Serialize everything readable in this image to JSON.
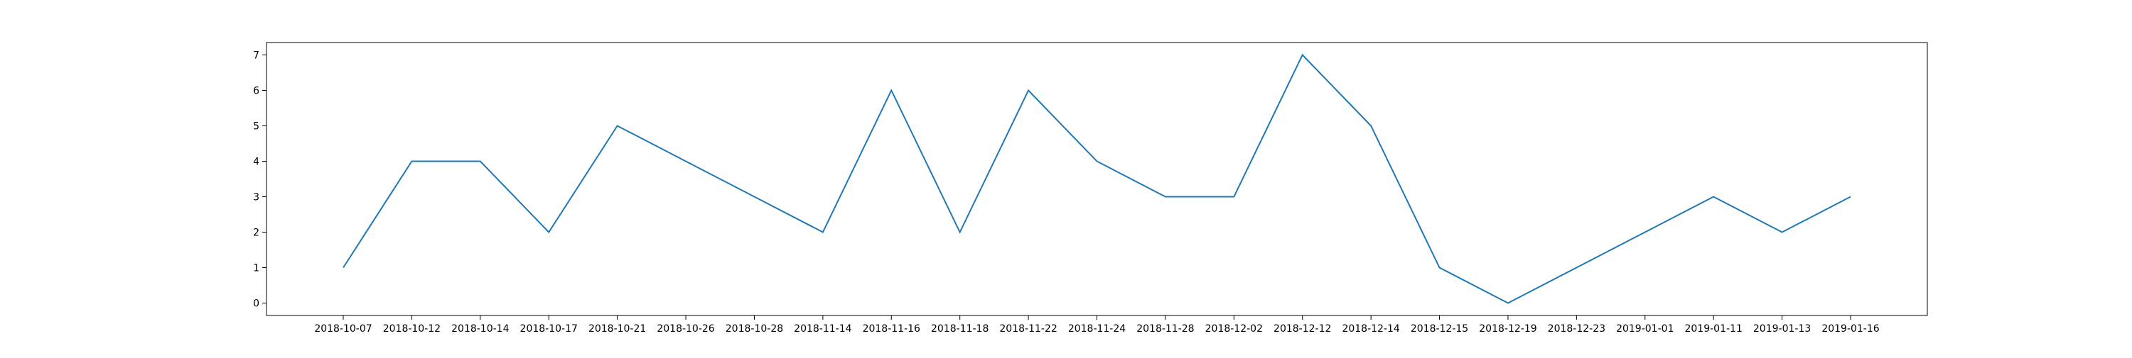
{
  "chart_data": {
    "type": "line",
    "title": "",
    "xlabel": "",
    "ylabel": "",
    "categories": [
      "2018-10-07",
      "2018-10-12",
      "2018-10-14",
      "2018-10-17",
      "2018-10-21",
      "2018-10-26",
      "2018-10-28",
      "2018-11-14",
      "2018-11-16",
      "2018-11-18",
      "2018-11-22",
      "2018-11-24",
      "2018-11-28",
      "2018-12-02",
      "2018-12-12",
      "2018-12-14",
      "2018-12-15",
      "2018-12-19",
      "2018-12-23",
      "2019-01-01",
      "2019-01-11",
      "2019-01-13",
      "2019-01-16"
    ],
    "series": [
      {
        "values": [
          1,
          4,
          4,
          2,
          5,
          4,
          3,
          2,
          6,
          2,
          6,
          4,
          3,
          3,
          7,
          5,
          1,
          0,
          1,
          2,
          3,
          2,
          3
        ],
        "color": "#1f77b4"
      }
    ],
    "ylim": [
      -0.35,
      7.35
    ],
    "yticks": [
      0,
      1,
      2,
      3,
      4,
      5,
      6,
      7
    ],
    "grid": false,
    "legend": "none"
  }
}
